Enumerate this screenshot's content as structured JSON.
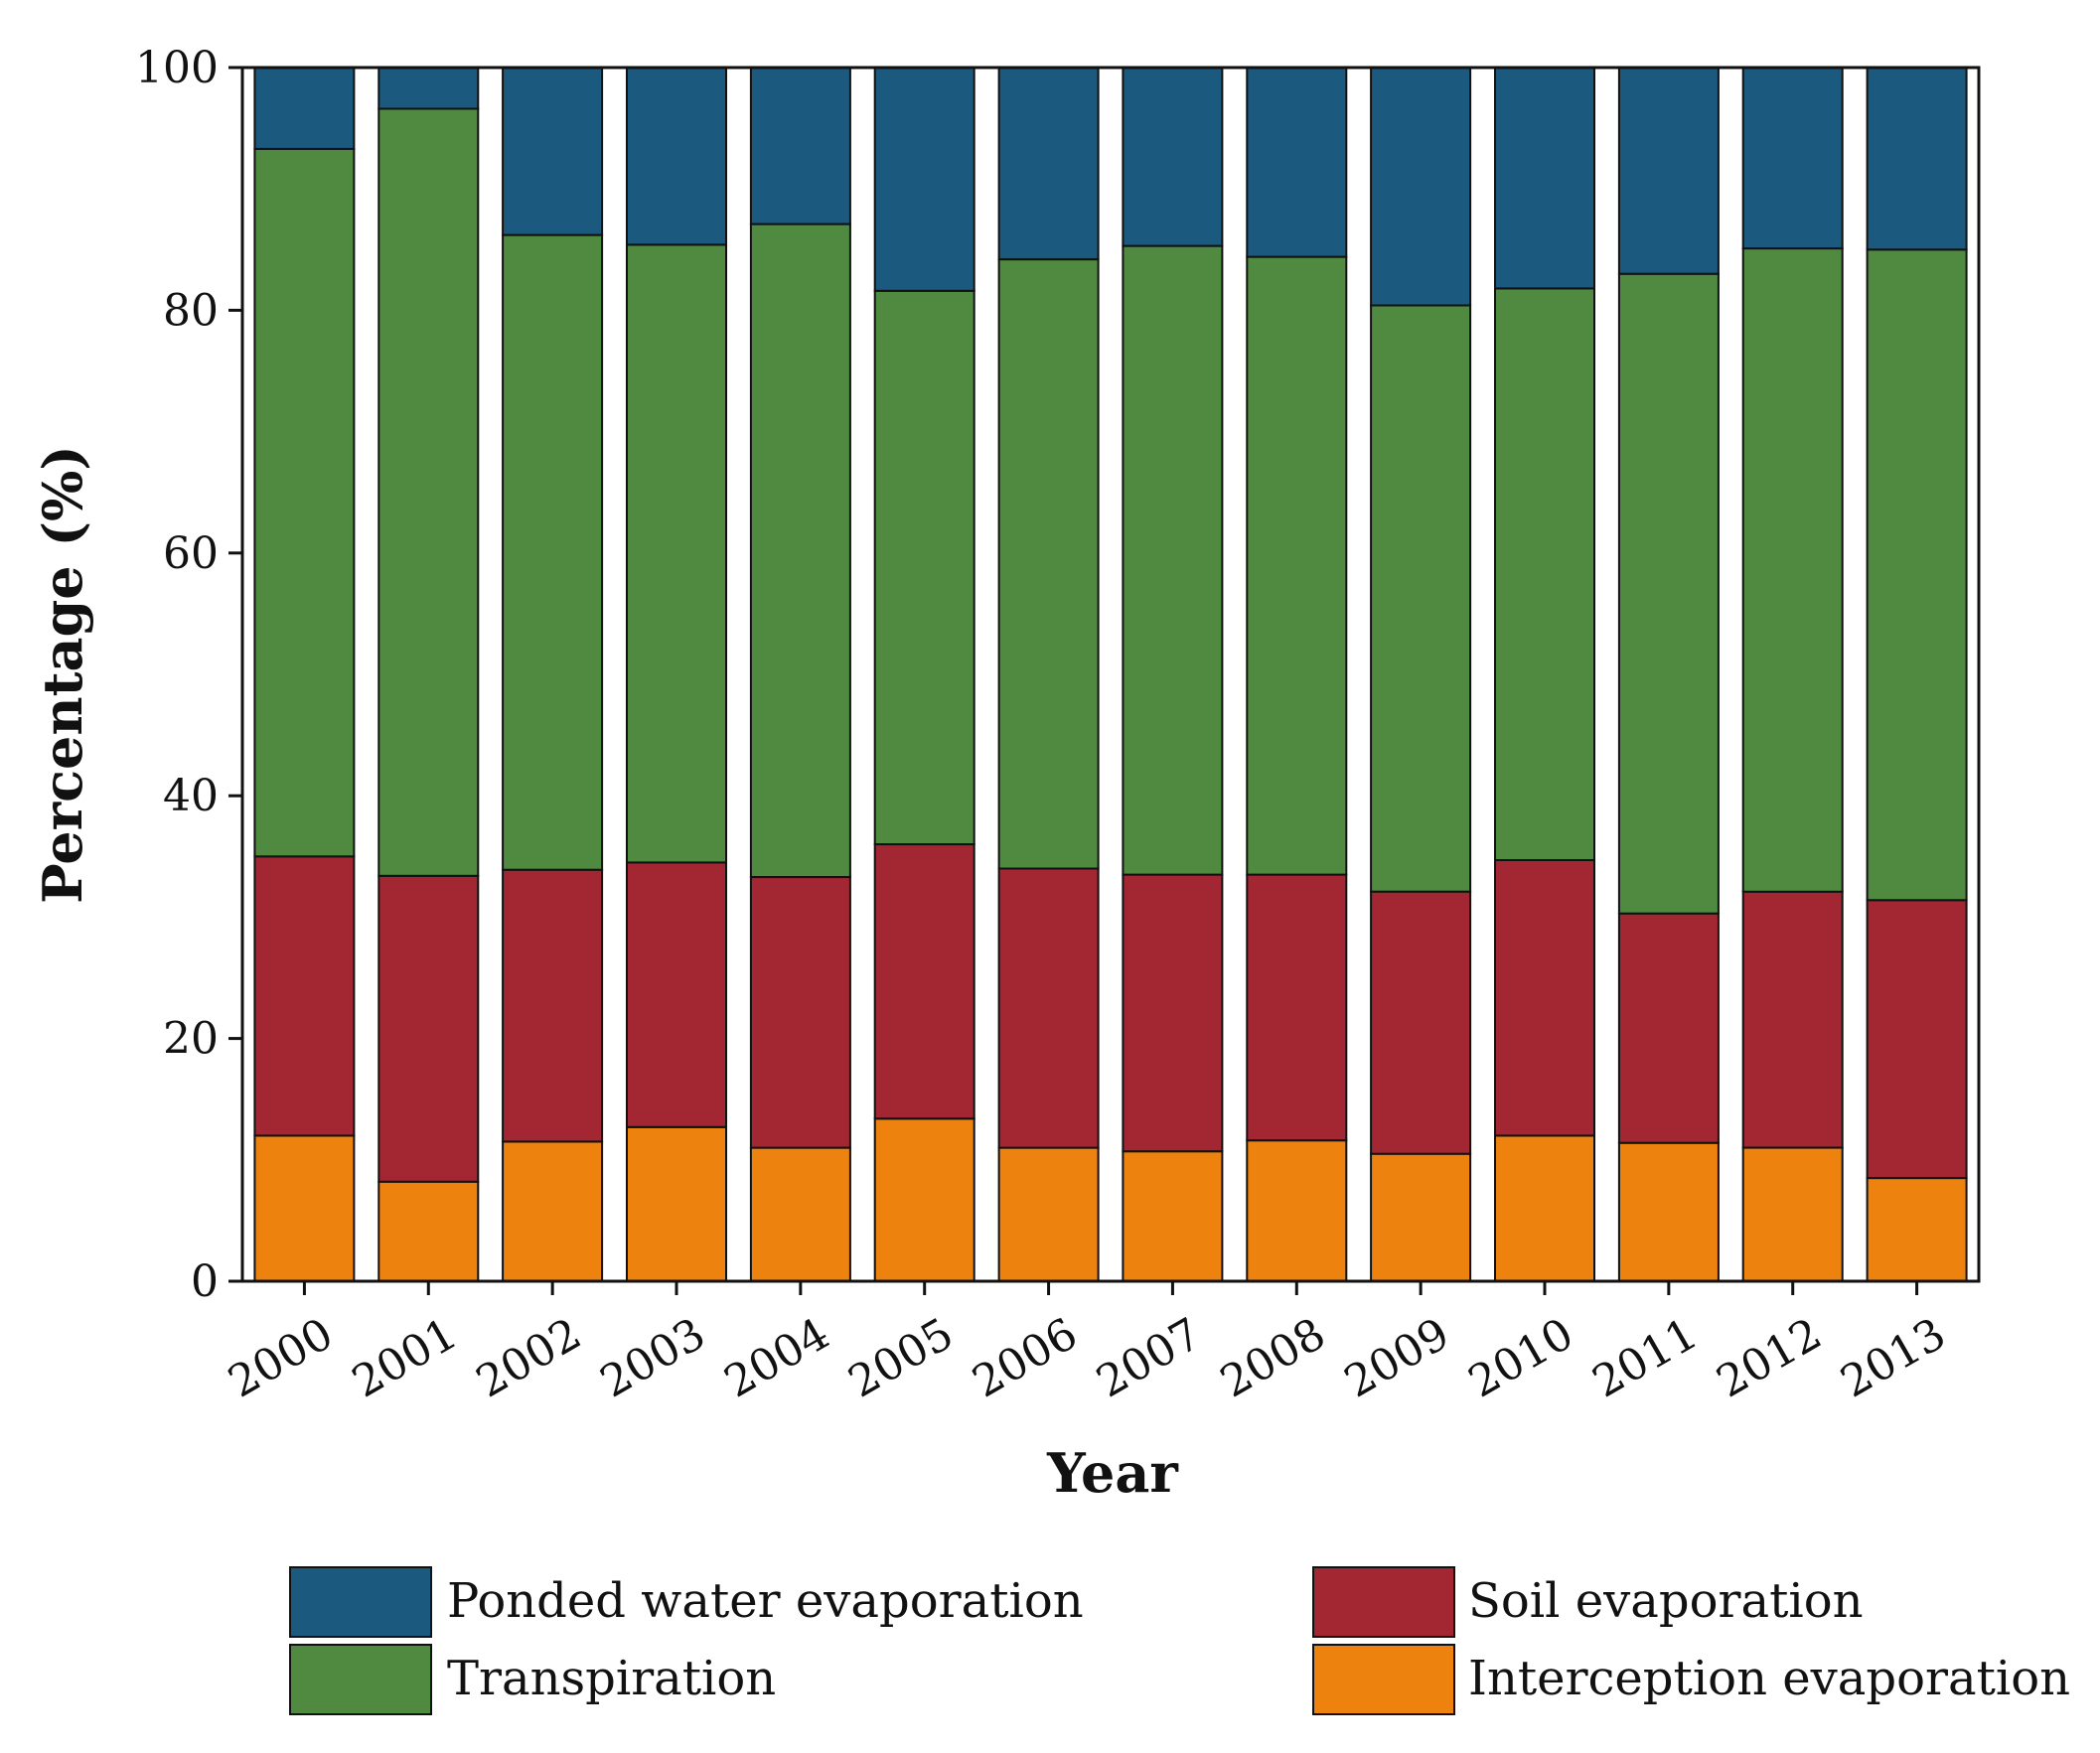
{
  "chart_data": {
    "type": "bar",
    "stacked": true,
    "title": "",
    "xlabel": "Year",
    "ylabel": "Percentage (%)",
    "ylim": [
      0,
      100
    ],
    "yticks": [
      "0",
      "20",
      "40",
      "60",
      "80",
      "100"
    ],
    "grid": false,
    "legend_position": "bottom",
    "categories": [
      "2000",
      "2001",
      "2002",
      "2003",
      "2004",
      "2005",
      "2006",
      "2007",
      "2008",
      "2009",
      "2010",
      "2011",
      "2012",
      "2013"
    ],
    "series": [
      {
        "name": "Interception evaporation",
        "color": "#ee820f",
        "values": [
          12.0,
          8.2,
          11.5,
          12.7,
          11.0,
          13.4,
          11.0,
          10.7,
          11.6,
          10.5,
          12.0,
          11.4,
          11.0,
          8.5
        ]
      },
      {
        "name": "Soil evaporation",
        "color": "#a32633",
        "values": [
          23.0,
          25.2,
          22.4,
          21.8,
          22.3,
          22.6,
          23.0,
          22.8,
          21.9,
          21.6,
          22.7,
          18.9,
          21.1,
          22.9
        ]
      },
      {
        "name": "Transpiration",
        "color": "#4f8a40",
        "values": [
          58.3,
          63.2,
          52.3,
          50.9,
          53.8,
          45.6,
          50.2,
          51.8,
          50.9,
          48.3,
          47.1,
          52.7,
          53.0,
          53.6
        ]
      },
      {
        "name": "Ponded water evaporation",
        "color": "#1c597e",
        "values": [
          6.7,
          3.4,
          13.8,
          14.6,
          12.9,
          18.4,
          15.8,
          14.7,
          15.6,
          19.6,
          18.2,
          17.0,
          14.9,
          15.0
        ]
      }
    ],
    "legend": {
      "items": [
        {
          "name": "Ponded water evaporation",
          "color": "#1c597e"
        },
        {
          "name": "Soil evaporation",
          "color": "#a32633"
        },
        {
          "name": "Transpiration",
          "color": "#4f8a40"
        },
        {
          "name": "Interception evaporation",
          "color": "#ee820f"
        }
      ]
    }
  }
}
